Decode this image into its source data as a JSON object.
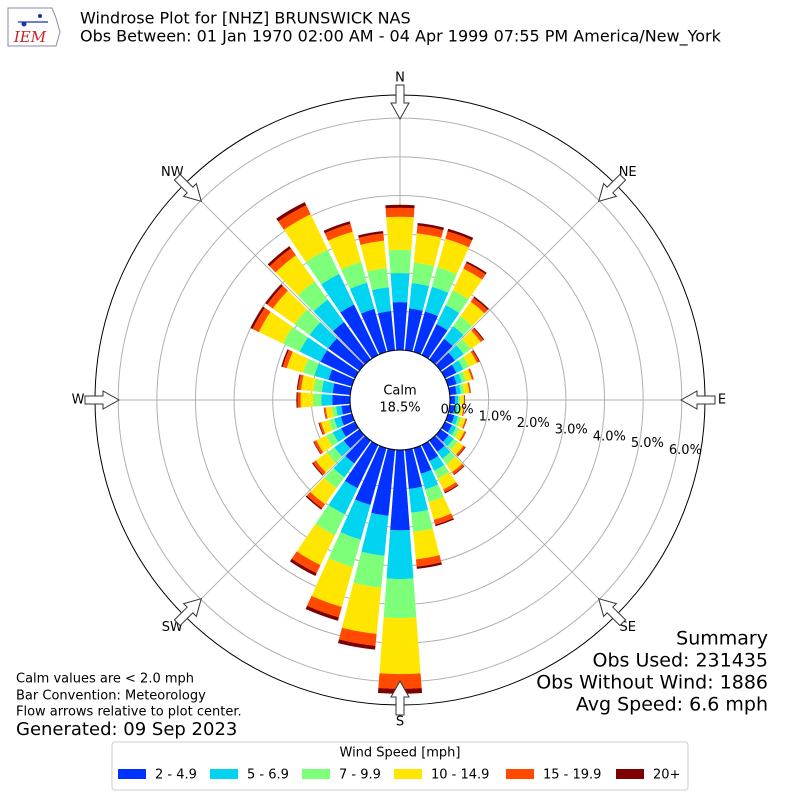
{
  "header": {
    "title": "Windrose Plot for [NHZ] BRUNSWICK NAS",
    "subtitle": "Obs Between: 01 Jan 1970 02:00 AM - 04 Apr 1999 07:55 PM America/New_York",
    "logo": "IEM"
  },
  "chart_data": {
    "type": "windrose",
    "compass_labels": [
      "N",
      "NE",
      "E",
      "SE",
      "S",
      "SW",
      "W",
      "NW"
    ],
    "categories": [
      null,
      null,
      null,
      null,
      null,
      null,
      null,
      null,
      null,
      null,
      null,
      null,
      null,
      null,
      null,
      null,
      null,
      null,
      null,
      null,
      null,
      null,
      null,
      null,
      null,
      null,
      null,
      null,
      null,
      null,
      null,
      null,
      null,
      null,
      null,
      null
    ],
    "calm_label": "Calm",
    "calm_value": "18.5%",
    "ylim": [
      0,
      6.6
    ],
    "yticks": [
      {
        "value": 0,
        "label": "0.0%"
      },
      {
        "value": 1,
        "label": "1.0%"
      },
      {
        "value": 2,
        "label": "2.0%"
      },
      {
        "value": 3,
        "label": "3.0%"
      },
      {
        "value": 4,
        "label": "4.0%"
      },
      {
        "value": 5,
        "label": "5.0%"
      },
      {
        "value": 6,
        "label": "6.0%"
      }
    ],
    "grid": true,
    "legend_title": "Wind Speed [mph]",
    "series": [
      {
        "name": "2 - 4.9",
        "color": "#0033ff",
        "values": [
          1.24,
          1.09,
          1.09,
          0.89,
          0.66,
          0.46,
          0.33,
          0.23,
          0.18,
          0.13,
          0.13,
          0.17,
          0.2,
          0.26,
          0.36,
          0.46,
          0.69,
          1.02,
          2.08,
          1.72,
          1.53,
          1.24,
          0.73,
          0.5,
          0.4,
          0.3,
          0.23,
          0.46,
          0.46,
          0.63,
          0.99,
          0.99,
          1.19,
          1.45,
          1.16,
          1.02
        ]
      },
      {
        "name": "5 - 6.9",
        "color": "#00d4f0",
        "values": [
          0.75,
          0.66,
          0.66,
          0.54,
          0.4,
          0.28,
          0.2,
          0.14,
          0.11,
          0.08,
          0.08,
          0.1,
          0.12,
          0.16,
          0.22,
          0.28,
          0.42,
          0.62,
          1.26,
          1.04,
          0.93,
          0.75,
          0.44,
          0.3,
          0.24,
          0.18,
          0.14,
          0.28,
          0.28,
          0.38,
          0.6,
          0.6,
          0.72,
          0.88,
          0.7,
          0.62
        ]
      },
      {
        "name": "7 - 9.9",
        "color": "#7dff7a",
        "values": [
          0.6,
          0.53,
          0.53,
          0.43,
          0.32,
          0.22,
          0.16,
          0.11,
          0.09,
          0.06,
          0.06,
          0.08,
          0.1,
          0.13,
          0.18,
          0.22,
          0.34,
          0.5,
          1.01,
          0.83,
          0.74,
          0.6,
          0.35,
          0.24,
          0.19,
          0.14,
          0.11,
          0.22,
          0.22,
          0.3,
          0.48,
          0.48,
          0.58,
          0.7,
          0.56,
          0.5
        ]
      },
      {
        "name": "10 - 14.9",
        "color": "#ffe600",
        "values": [
          0.86,
          0.76,
          0.76,
          0.62,
          0.46,
          0.32,
          0.23,
          0.16,
          0.13,
          0.09,
          0.09,
          0.12,
          0.14,
          0.18,
          0.25,
          0.32,
          0.48,
          0.71,
          1.45,
          1.2,
          1.07,
          0.86,
          0.51,
          0.35,
          0.28,
          0.21,
          0.16,
          0.32,
          0.32,
          0.44,
          0.69,
          0.69,
          0.83,
          1.01,
          0.81,
          0.71
        ]
      },
      {
        "name": "15 - 19.9",
        "color": "#ff4a00",
        "values": [
          0.23,
          0.2,
          0.2,
          0.16,
          0.12,
          0.08,
          0.06,
          0.04,
          0.03,
          0.02,
          0.02,
          0.03,
          0.04,
          0.05,
          0.07,
          0.08,
          0.13,
          0.19,
          0.38,
          0.31,
          0.28,
          0.23,
          0.13,
          0.09,
          0.07,
          0.05,
          0.04,
          0.08,
          0.08,
          0.11,
          0.18,
          0.18,
          0.22,
          0.26,
          0.21,
          0.19
        ]
      },
      {
        "name": "20+",
        "color": "#7f0000",
        "values": [
          0.08,
          0.07,
          0.07,
          0.05,
          0.04,
          0.03,
          0.02,
          0.01,
          0.01,
          0.01,
          0.01,
          0.01,
          0.01,
          0.02,
          0.02,
          0.03,
          0.04,
          0.06,
          0.13,
          0.1,
          0.09,
          0.08,
          0.04,
          0.03,
          0.02,
          0.02,
          0.01,
          0.03,
          0.03,
          0.04,
          0.06,
          0.06,
          0.07,
          0.09,
          0.07,
          0.06
        ]
      }
    ]
  },
  "summary": {
    "title": "Summary",
    "lines": [
      "Obs Used: 231435",
      "Obs Without Wind: 1886",
      "Avg Speed: 6.6 mph"
    ]
  },
  "notes": [
    "Calm values are < 2.0 mph",
    "Bar Convention: Meteorology",
    "Flow arrows relative to plot center."
  ],
  "generated": "Generated: 09 Sep 2023"
}
